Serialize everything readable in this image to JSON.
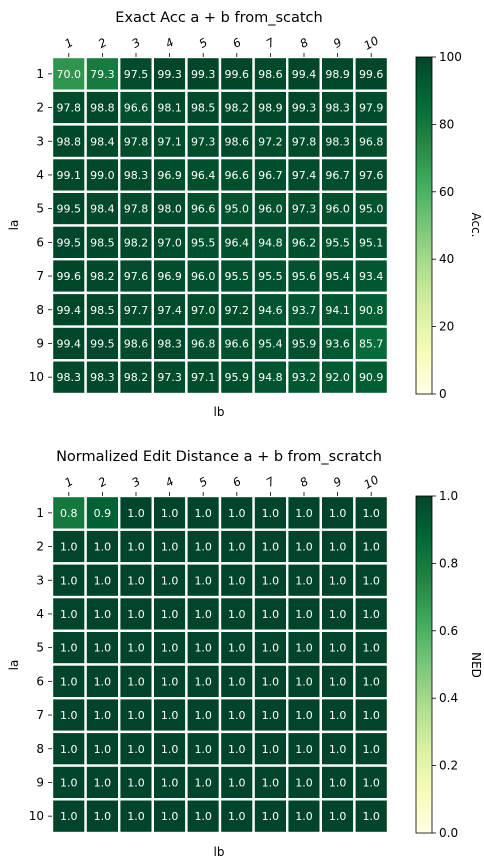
{
  "chart_data": [
    {
      "type": "heatmap",
      "title": "Exact Acc a + b from_scatch",
      "xlabel": "lb",
      "ylabel": "la",
      "x_ticklabels": [
        "1",
        "2",
        "3",
        "4",
        "5",
        "6",
        "7",
        "8",
        "9",
        "10"
      ],
      "y_ticklabels": [
        "1",
        "2",
        "3",
        "4",
        "5",
        "6",
        "7",
        "8",
        "9",
        "10"
      ],
      "colorbar_label": "Acc.",
      "colorbar_range": [
        0,
        100
      ],
      "colorbar_ticks": [
        "0",
        "20",
        "40",
        "60",
        "80",
        "100"
      ],
      "colormap": "YlGn",
      "decimals": 1,
      "values": [
        [
          70.0,
          79.3,
          97.5,
          99.3,
          99.3,
          99.6,
          98.6,
          99.4,
          98.9,
          99.6
        ],
        [
          97.8,
          98.8,
          96.6,
          98.1,
          98.5,
          98.2,
          98.9,
          99.3,
          98.3,
          97.9
        ],
        [
          98.8,
          98.4,
          97.8,
          97.1,
          97.3,
          98.6,
          97.2,
          97.8,
          98.3,
          96.8
        ],
        [
          99.1,
          99.0,
          98.3,
          96.9,
          96.4,
          96.6,
          96.7,
          97.4,
          96.7,
          97.6
        ],
        [
          99.5,
          98.4,
          97.8,
          98.0,
          96.6,
          95.0,
          96.0,
          97.3,
          96.0,
          95.0
        ],
        [
          99.5,
          98.5,
          98.2,
          97.0,
          95.5,
          96.4,
          94.8,
          96.2,
          95.5,
          95.1
        ],
        [
          99.6,
          98.2,
          97.6,
          96.9,
          96.0,
          95.5,
          95.5,
          95.6,
          95.4,
          93.4
        ],
        [
          99.4,
          98.5,
          97.7,
          97.4,
          97.0,
          97.2,
          94.6,
          93.7,
          94.1,
          90.8
        ],
        [
          99.4,
          99.5,
          98.6,
          98.3,
          96.8,
          96.6,
          95.4,
          95.9,
          93.6,
          85.7
        ],
        [
          98.3,
          98.3,
          98.2,
          97.3,
          97.1,
          95.9,
          94.8,
          93.2,
          92.0,
          90.9
        ]
      ]
    },
    {
      "type": "heatmap",
      "title": "Normalized Edit Distance a + b from_scratch",
      "xlabel": "lb",
      "ylabel": "la",
      "x_ticklabels": [
        "1",
        "2",
        "3",
        "4",
        "5",
        "6",
        "7",
        "8",
        "9",
        "10"
      ],
      "y_ticklabels": [
        "1",
        "2",
        "3",
        "4",
        "5",
        "6",
        "7",
        "8",
        "9",
        "10"
      ],
      "colorbar_label": "NED",
      "colorbar_range": [
        0.0,
        1.0
      ],
      "colorbar_ticks": [
        "0.0",
        "0.2",
        "0.4",
        "0.6",
        "0.8",
        "1.0"
      ],
      "colormap": "YlGn",
      "decimals": 1,
      "values": [
        [
          0.8,
          0.9,
          1.0,
          1.0,
          1.0,
          1.0,
          1.0,
          1.0,
          1.0,
          1.0
        ],
        [
          1.0,
          1.0,
          1.0,
          1.0,
          1.0,
          1.0,
          1.0,
          1.0,
          1.0,
          1.0
        ],
        [
          1.0,
          1.0,
          1.0,
          1.0,
          1.0,
          1.0,
          1.0,
          1.0,
          1.0,
          1.0
        ],
        [
          1.0,
          1.0,
          1.0,
          1.0,
          1.0,
          1.0,
          1.0,
          1.0,
          1.0,
          1.0
        ],
        [
          1.0,
          1.0,
          1.0,
          1.0,
          1.0,
          1.0,
          1.0,
          1.0,
          1.0,
          1.0
        ],
        [
          1.0,
          1.0,
          1.0,
          1.0,
          1.0,
          1.0,
          1.0,
          1.0,
          1.0,
          1.0
        ],
        [
          1.0,
          1.0,
          1.0,
          1.0,
          1.0,
          1.0,
          1.0,
          1.0,
          1.0,
          1.0
        ],
        [
          1.0,
          1.0,
          1.0,
          1.0,
          1.0,
          1.0,
          1.0,
          1.0,
          1.0,
          1.0
        ],
        [
          1.0,
          1.0,
          1.0,
          1.0,
          1.0,
          1.0,
          1.0,
          1.0,
          1.0,
          1.0
        ],
        [
          1.0,
          1.0,
          1.0,
          1.0,
          1.0,
          1.0,
          1.0,
          1.0,
          1.0,
          1.0
        ]
      ]
    }
  ]
}
